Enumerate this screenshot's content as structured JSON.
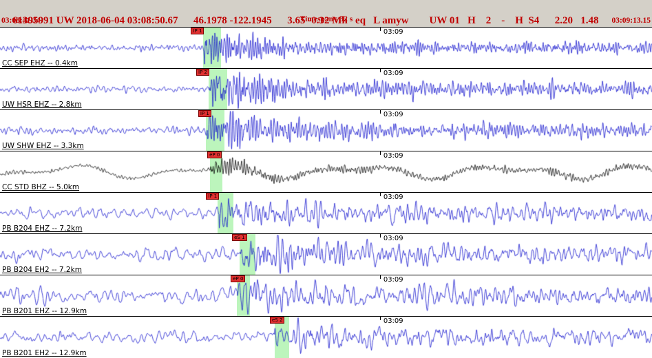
{
  "header": {
    "line1": "61395991 UW 2018-06-04 03:08:50.67      46.1978 -122.1945      3.65 -0.32 Mh   eq   L amyw        UW 01   H    2    -    H  S4      2.20   1.48",
    "start_time": "03:08:41.34",
    "timespan": "Timespan=  32 s",
    "end_time": "03:09:13.15"
  },
  "colors": {
    "header_bg": "#d4d0c8",
    "header_text": "#c00000",
    "trace_default": "#1313cd",
    "band": "#90ee90",
    "flag_bg": "#e03030"
  },
  "minute": {
    "label": "03:09",
    "frac": 0.583
  },
  "traces": [
    {
      "station": "CC SEP EHZ -- 0.4km",
      "color": "#1313cd",
      "pick": {
        "label": "IP 1",
        "frac": 0.293
      },
      "bands": [
        [
          0.311,
          0.339
        ]
      ],
      "synth": {
        "seed": 101,
        "noise_amp": 5,
        "noise_period": 6,
        "lf_amp": 0,
        "lf_period": 200,
        "onset": 0.313,
        "event_amp": 24,
        "event_period": 3.5,
        "decay": 0.07,
        "coda": 7
      }
    },
    {
      "station": "UW HSR EHZ -- 2.8km",
      "color": "#1313cd",
      "pick": {
        "label": "IP 2",
        "frac": 0.301
      },
      "bands": [
        [
          0.32,
          0.348
        ]
      ],
      "synth": {
        "seed": 102,
        "noise_amp": 5,
        "noise_period": 7,
        "lf_amp": 0,
        "lf_period": 200,
        "onset": 0.322,
        "event_amp": 26,
        "event_period": 4,
        "decay": 0.1,
        "coda": 9
      }
    },
    {
      "station": "UW SHW EHZ -- 3.3km",
      "color": "#1313cd",
      "pick": {
        "label": "IP 1",
        "frac": 0.304
      },
      "bands": [
        [
          0.316,
          0.344
        ]
      ],
      "synth": {
        "seed": 103,
        "noise_amp": 6,
        "noise_period": 7,
        "lf_amp": 0,
        "lf_period": 200,
        "onset": 0.318,
        "event_amp": 28,
        "event_period": 4,
        "decay": 0.1,
        "coda": 8
      }
    },
    {
      "station": "CC STD BHZ -- 5.0km",
      "color": "#000000",
      "pick": {
        "label": "eP 0",
        "frac": 0.318
      },
      "bands": [
        [
          0.322,
          0.341
        ]
      ],
      "synth": {
        "seed": 104,
        "noise_amp": 3,
        "noise_period": 5,
        "lf_amp": 11,
        "lf_period": 210,
        "onset": 0.323,
        "event_amp": 17,
        "event_period": 4,
        "decay": 0.05,
        "coda": 4
      }
    },
    {
      "station": "PB B204 EHZ -- 7.2km",
      "color": "#1313cd",
      "pick": {
        "label": "IP 1",
        "frac": 0.316
      },
      "bands": [
        [
          0.334,
          0.358
        ]
      ],
      "synth": {
        "seed": 105,
        "noise_amp": 9,
        "noise_period": 11,
        "lf_amp": 0,
        "lf_period": 200,
        "onset": 0.336,
        "event_amp": 20,
        "event_period": 6,
        "decay": 0.08,
        "coda": 10
      }
    },
    {
      "station": "PB B204 EH2 -- 7.2km",
      "color": "#1313cd",
      "pick": {
        "label": "eS 1",
        "frac": 0.356
      },
      "bands": [
        [
          0.368,
          0.392
        ]
      ],
      "synth": {
        "seed": 106,
        "noise_amp": 10,
        "noise_period": 11,
        "lf_amp": 0,
        "lf_period": 200,
        "onset": 0.369,
        "event_amp": 24,
        "event_period": 6,
        "decay": 0.09,
        "coda": 10
      }
    },
    {
      "station": "PB B201 EHZ -- 12.9km",
      "color": "#1313cd",
      "pick": {
        "label": "eP 0",
        "frac": 0.354
      },
      "bands": [
        [
          0.363,
          0.383
        ]
      ],
      "synth": {
        "seed": 107,
        "noise_amp": 11,
        "noise_period": 12,
        "lf_amp": 0,
        "lf_period": 200,
        "onset": 0.364,
        "event_amp": 17,
        "event_period": 7,
        "decay": 0.12,
        "coda": 11
      }
    },
    {
      "station": "PB B201 EH2 -- 12.9km",
      "color": "#1313cd",
      "pick": {
        "label": "eS 2",
        "frac": 0.414
      },
      "bands": [
        [
          0.421,
          0.443
        ]
      ],
      "synth": {
        "seed": 108,
        "noise_amp": 9,
        "noise_period": 12,
        "lf_amp": 0,
        "lf_period": 200,
        "onset": 0.421,
        "event_amp": 15,
        "event_period": 7,
        "decay": 0.12,
        "coda": 9
      }
    }
  ]
}
